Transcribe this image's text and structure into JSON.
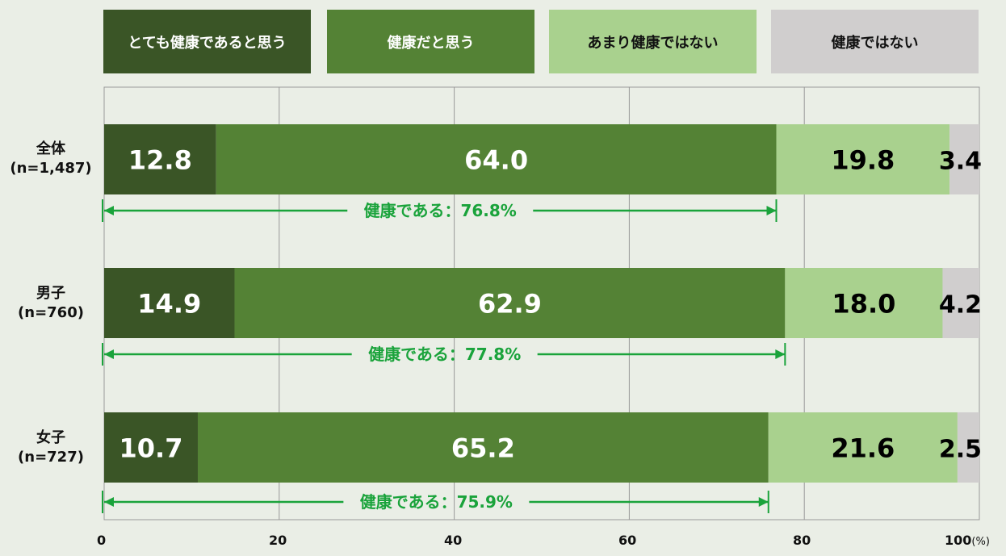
{
  "chart_data": {
    "type": "bar",
    "orientation": "horizontal",
    "stacked": true,
    "categories": [
      "全体\n(n=1,487)",
      "男子\n(n=760)",
      "女子\n(n=727)"
    ],
    "series": [
      {
        "name": "とても健康であると思う",
        "values": [
          12.8,
          14.9,
          10.7
        ],
        "color": "#3a5526",
        "label_color": "#ffffff"
      },
      {
        "name": "健康だと思う",
        "values": [
          64.0,
          62.9,
          65.2
        ],
        "color": "#548235",
        "label_color": "#ffffff"
      },
      {
        "name": "あまり健康ではない",
        "values": [
          19.8,
          18.0,
          21.6
        ],
        "color": "#a9d18e",
        "label_color": "#000000"
      },
      {
        "name": "健康ではない",
        "values": [
          3.4,
          4.2,
          2.5
        ],
        "color": "#d0cece",
        "label_color": "#000000"
      }
    ],
    "annotations": [
      {
        "text": "健康である：76.8%",
        "value": 76.8
      },
      {
        "text": "健康である：77.8%",
        "value": 77.8
      },
      {
        "text": "健康である：75.9%",
        "value": 75.9
      }
    ],
    "xlim": [
      0,
      100
    ],
    "xticks": [
      "0",
      "20",
      "40",
      "60",
      "80",
      "100"
    ],
    "xunit": "(%)",
    "grid": true,
    "legend_position": "top",
    "colors": {
      "annotation": "#1aa33b",
      "grid": "#999999",
      "background": "#eaeee6"
    }
  }
}
